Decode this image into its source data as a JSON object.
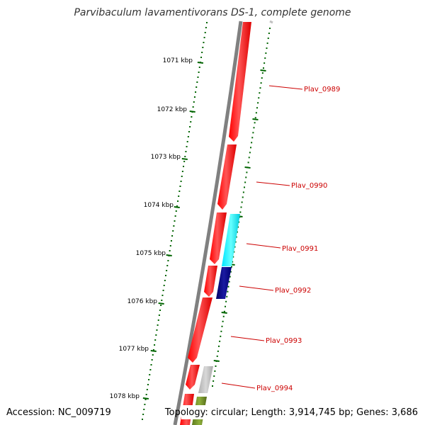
{
  "header": {
    "title": "Parvibaculum lavamentivorans DS-1, complete genome"
  },
  "footer": {
    "accession": "Accession: NC_009719",
    "topology": "Topology: circular; Length: 3,914,745 bp; Genes: 3,686"
  },
  "ruler": {
    "ticks": [
      {
        "label": "1071 kbp"
      },
      {
        "label": "1072 kbp"
      },
      {
        "label": "1073 kbp"
      },
      {
        "label": "1074 kbp"
      },
      {
        "label": "1075 kbp"
      },
      {
        "label": "1076 kbp"
      },
      {
        "label": "1077 kbp"
      },
      {
        "label": "1078 kbp"
      }
    ]
  },
  "genes": [
    {
      "label": "Plav_0989",
      "color": "#ff0000"
    },
    {
      "label": "Plav_0990",
      "color": "#ff0000"
    },
    {
      "label": "Plav_0991",
      "color": "#00ffff"
    },
    {
      "label": "Plav_0992",
      "color": "#000080"
    },
    {
      "label": "Plav_0993",
      "color": "#ff0000"
    },
    {
      "label": "Plav_0994",
      "color": "#ff0000"
    }
  ],
  "colors": {
    "backbone": "#808080",
    "tick": "#006400",
    "label_line": "#cc0000",
    "grey_feature": "#bdbdbd",
    "olive_feature": "#6b8e23"
  }
}
